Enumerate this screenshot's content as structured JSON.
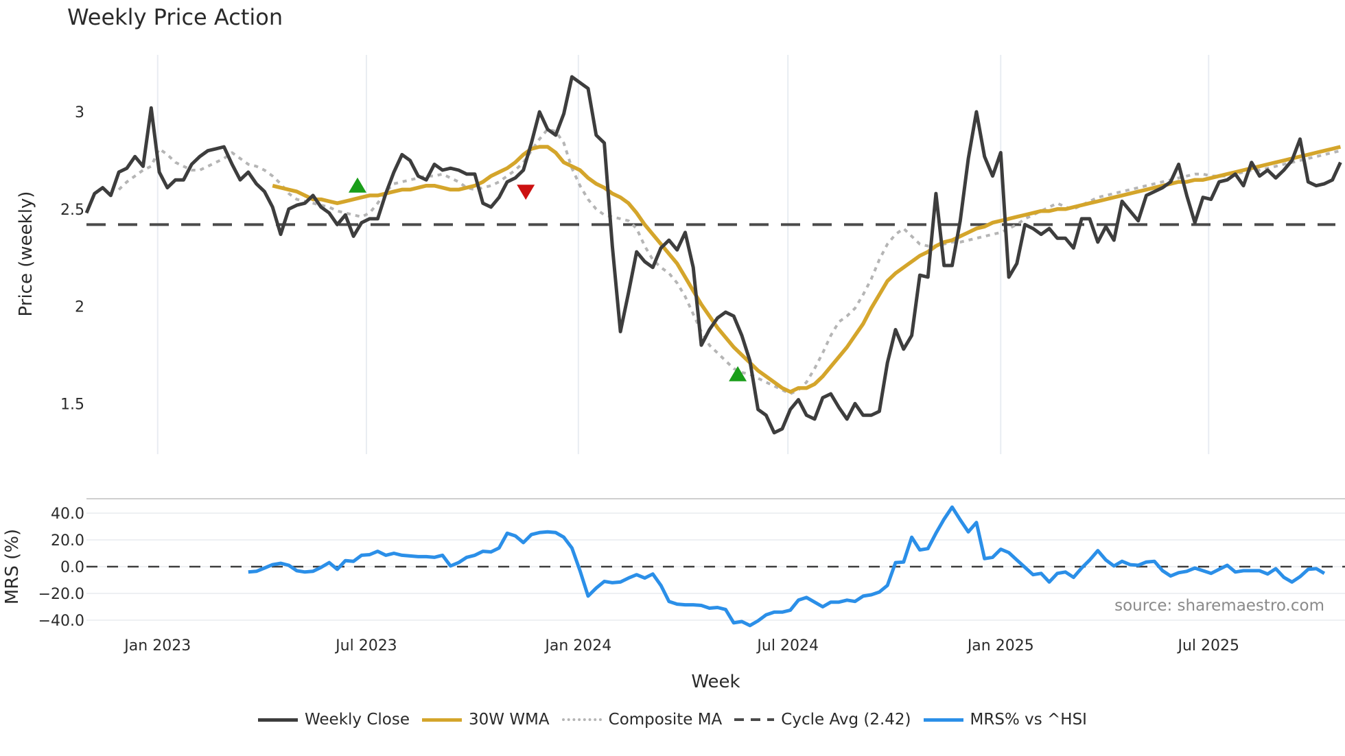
{
  "header": {
    "title": "Weekly Price Action"
  },
  "source_note": "source: sharemaestro.com",
  "legend": [
    {
      "label": "Weekly Close",
      "color": "#3d3d3d",
      "style": "solid"
    },
    {
      "label": "30W WMA",
      "color": "#d4a52b",
      "style": "solid"
    },
    {
      "label": "Composite MA",
      "color": "#b5b5b5",
      "style": "dotted"
    },
    {
      "label": "Cycle Avg (2.42)",
      "color": "#4a4a4a",
      "style": "dashed"
    },
    {
      "label": "MRS% vs ^HSI",
      "color": "#2b8fe8",
      "style": "solid"
    }
  ],
  "chart_data": [
    {
      "type": "line",
      "title": "Weekly Price Action",
      "xlabel": "Week",
      "ylabel": "Price (weekly)",
      "ylim": [
        1.22,
        3.28
      ],
      "yticks": [
        1.5,
        2,
        2.5,
        3
      ],
      "ytick_labels": [
        "1.5",
        "2",
        "2.5",
        "3"
      ],
      "xticks": [
        {
          "label": "Jan 2023",
          "week": 8.8
        },
        {
          "label": "Jul 2023",
          "week": 34.6
        },
        {
          "label": "Jan 2024",
          "week": 60.8
        },
        {
          "label": "Jul 2024",
          "week": 86.7
        },
        {
          "label": "Jan 2025",
          "week": 113.0
        },
        {
          "label": "Jul 2025",
          "week": 138.7
        }
      ],
      "grid": "vertical",
      "reference_line": {
        "name": "Cycle Avg (2.42)",
        "value": 2.42
      },
      "series": [
        {
          "name": "Weekly Close",
          "start_week": 0,
          "values": [
            2.48,
            2.58,
            2.61,
            2.57,
            2.69,
            2.71,
            2.77,
            2.72,
            3.02,
            2.69,
            2.61,
            2.65,
            2.65,
            2.73,
            2.77,
            2.8,
            2.81,
            2.82,
            2.73,
            2.65,
            2.69,
            2.63,
            2.59,
            2.51,
            2.37,
            2.5,
            2.52,
            2.53,
            2.57,
            2.51,
            2.48,
            2.42,
            2.47,
            2.36,
            2.43,
            2.45,
            2.45,
            2.58,
            2.69,
            2.78,
            2.75,
            2.67,
            2.65,
            2.73,
            2.7,
            2.71,
            2.7,
            2.68,
            2.68,
            2.53,
            2.51,
            2.56,
            2.64,
            2.66,
            2.7,
            2.84,
            3.0,
            2.91,
            2.88,
            2.99,
            3.18,
            3.15,
            3.12,
            2.88,
            2.84,
            2.31,
            1.87,
            2.07,
            2.28,
            2.23,
            2.2,
            2.3,
            2.34,
            2.29,
            2.38,
            2.2,
            1.8,
            1.88,
            1.94,
            1.97,
            1.95,
            1.85,
            1.72,
            1.47,
            1.44,
            1.35,
            1.37,
            1.47,
            1.52,
            1.44,
            1.42,
            1.53,
            1.55,
            1.48,
            1.42,
            1.5,
            1.44,
            1.44,
            1.46,
            1.71,
            1.88,
            1.78,
            1.85,
            2.16,
            2.15,
            2.58,
            2.21,
            2.21,
            2.44,
            2.76,
            3.0,
            2.77,
            2.67,
            2.79,
            2.15,
            2.22,
            2.42,
            2.4,
            2.37,
            2.4,
            2.35,
            2.35,
            2.3,
            2.45,
            2.45,
            2.33,
            2.41,
            2.34,
            2.54,
            2.49,
            2.44,
            2.57,
            2.59,
            2.61,
            2.64,
            2.73,
            2.57,
            2.43,
            2.56,
            2.55,
            2.64,
            2.65,
            2.68,
            2.62,
            2.74,
            2.67,
            2.7,
            2.66,
            2.7,
            2.75,
            2.86,
            2.64,
            2.62,
            2.63,
            2.65,
            2.74,
            2.7
          ]
        },
        {
          "name": "30W WMA",
          "start_week": 23,
          "values": [
            2.62,
            2.61,
            2.6,
            2.59,
            2.57,
            2.55,
            2.55,
            2.54,
            2.53,
            2.54,
            2.55,
            2.56,
            2.57,
            2.57,
            2.58,
            2.59,
            2.6,
            2.6,
            2.61,
            2.62,
            2.62,
            2.61,
            2.6,
            2.6,
            2.61,
            2.62,
            2.64,
            2.67,
            2.69,
            2.71,
            2.74,
            2.78,
            2.81,
            2.82,
            2.82,
            2.79,
            2.74,
            2.72,
            2.7,
            2.66,
            2.63,
            2.61,
            2.58,
            2.56,
            2.53,
            2.48,
            2.42,
            2.37,
            2.32,
            2.27,
            2.22,
            2.15,
            2.08,
            2.01,
            1.95,
            1.89,
            1.84,
            1.79,
            1.75,
            1.71,
            1.67,
            1.64,
            1.61,
            1.58,
            1.56,
            1.58,
            1.58,
            1.6,
            1.64,
            1.69,
            1.74,
            1.79,
            1.85,
            1.91,
            1.99,
            2.06,
            2.13,
            2.17,
            2.2,
            2.23,
            2.26,
            2.28,
            2.31,
            2.33,
            2.34,
            2.36,
            2.38,
            2.4,
            2.41,
            2.43,
            2.44,
            2.45,
            2.46,
            2.47,
            2.48,
            2.49,
            2.49,
            2.5,
            2.5,
            2.51,
            2.52,
            2.53,
            2.54,
            2.55,
            2.56,
            2.57,
            2.58,
            2.59,
            2.6,
            2.61,
            2.62,
            2.63,
            2.64,
            2.64,
            2.65,
            2.65,
            2.66,
            2.67,
            2.68,
            2.69,
            2.7,
            2.71,
            2.72,
            2.73,
            2.74,
            2.75,
            2.76,
            2.77,
            2.78,
            2.79,
            2.8,
            2.81,
            2.82,
            2.83,
            2.84,
            2.85
          ]
        },
        {
          "name": "Composite MA",
          "start_week": 4,
          "values": [
            2.6,
            2.64,
            2.67,
            2.7,
            2.72,
            2.81,
            2.78,
            2.74,
            2.72,
            2.7,
            2.7,
            2.72,
            2.74,
            2.76,
            2.79,
            2.76,
            2.73,
            2.72,
            2.7,
            2.67,
            2.63,
            2.58,
            2.55,
            2.54,
            2.53,
            2.52,
            2.51,
            2.49,
            2.48,
            2.47,
            2.46,
            2.48,
            2.53,
            2.59,
            2.63,
            2.64,
            2.65,
            2.66,
            2.67,
            2.67,
            2.68,
            2.66,
            2.64,
            2.61,
            2.6,
            2.61,
            2.62,
            2.64,
            2.67,
            2.7,
            2.74,
            2.8,
            2.86,
            2.91,
            2.9,
            2.84,
            2.71,
            2.62,
            2.55,
            2.5,
            2.47,
            2.46,
            2.45,
            2.44,
            2.4,
            2.31,
            2.24,
            2.2,
            2.17,
            2.12,
            2.05,
            1.96,
            1.87,
            1.8,
            1.76,
            1.72,
            1.68,
            1.66,
            1.65,
            1.63,
            1.61,
            1.59,
            1.57,
            1.55,
            1.57,
            1.61,
            1.68,
            1.76,
            1.85,
            1.92,
            1.95,
            1.99,
            2.06,
            2.14,
            2.24,
            2.32,
            2.37,
            2.4,
            2.36,
            2.32,
            2.31,
            2.31,
            2.32,
            2.33,
            2.33,
            2.34,
            2.35,
            2.36,
            2.37,
            2.38,
            2.4,
            2.42,
            2.45,
            2.47,
            2.49,
            2.51,
            2.53,
            2.51,
            2.5,
            2.52,
            2.54,
            2.56,
            2.57,
            2.58,
            2.59,
            2.6,
            2.61,
            2.62,
            2.63,
            2.64,
            2.65,
            2.66,
            2.67,
            2.68,
            2.68,
            2.67,
            2.67,
            2.67,
            2.68,
            2.69,
            2.7,
            2.7,
            2.71,
            2.72,
            2.73,
            2.74,
            2.75,
            2.76,
            2.77,
            2.78,
            2.79,
            2.8,
            2.81,
            2.82,
            2.83
          ]
        },
        {
          "name": "Cycle Avg (2.42)",
          "constant": 2.42
        }
      ],
      "markers": [
        {
          "type": "buy",
          "shape": "triangle-up",
          "color": "#1a9e1a",
          "week": 33.5,
          "value": 2.62
        },
        {
          "type": "sell",
          "shape": "triangle-down",
          "color": "#cc1111",
          "week": 54.3,
          "value": 2.59
        },
        {
          "type": "buy",
          "shape": "triangle-up",
          "color": "#1a9e1a",
          "week": 80.5,
          "value": 1.65
        }
      ]
    },
    {
      "type": "line",
      "title": "",
      "xlabel": "Week",
      "ylabel": "MRS (%)",
      "ylim": [
        -47,
        51
      ],
      "yticks": [
        -40,
        -20,
        0,
        20,
        40
      ],
      "ytick_labels": [
        "−40.0",
        "−20.0",
        "0.0",
        "20.0",
        "40.0"
      ],
      "grid": "horizontal",
      "reference_line": {
        "name": "zero",
        "value": 0
      },
      "series": [
        {
          "name": "MRS% vs ^HSI",
          "start_week": 20,
          "values": [
            -4,
            -3.5,
            -1,
            1.5,
            2.5,
            1,
            -3,
            -4,
            -3.5,
            -0.5,
            3,
            -2,
            4.5,
            4,
            8.5,
            9,
            11.5,
            8.5,
            10,
            8.5,
            8,
            7.5,
            7.5,
            7,
            8.5,
            0.5,
            3,
            7,
            8.5,
            11.5,
            11,
            14,
            25,
            23,
            18,
            24,
            25.5,
            26,
            25.5,
            22,
            14,
            -3,
            -22,
            -16,
            -11,
            -12,
            -11.5,
            -8.5,
            -6,
            -8.5,
            -5.5,
            -14,
            -26,
            -28,
            -28.5,
            -28.5,
            -29,
            -31,
            -30.5,
            -32,
            -42,
            -41,
            -44,
            -40.5,
            -36,
            -34,
            -34,
            -32.5,
            -25,
            -23,
            -26.5,
            -30,
            -26.5,
            -26.5,
            -25,
            -26,
            -22,
            -21,
            -19,
            -14,
            3,
            3.5,
            22,
            12.5,
            13.5,
            25,
            35.5,
            44.5,
            35,
            26,
            33,
            6,
            7,
            13,
            10.5,
            5,
            -0.5,
            -6,
            -5,
            -11.5,
            -5,
            -4,
            -8,
            -1,
            5,
            12,
            5,
            0.5,
            4,
            1.5,
            1,
            3.5,
            4,
            -3,
            -7,
            -4.5,
            -3.5,
            -1,
            -3,
            -5,
            -2,
            1,
            -4,
            -3,
            -3,
            -3,
            -5.5,
            -1.5,
            -8,
            -11.5,
            -7.5,
            -2,
            -1.5,
            -5
          ]
        }
      ]
    }
  ]
}
